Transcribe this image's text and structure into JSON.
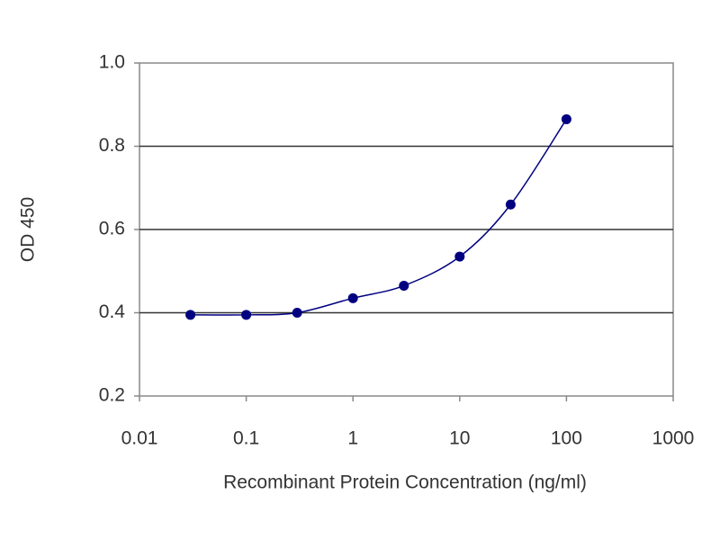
{
  "chart_data": {
    "type": "line",
    "x_label": "Recombinant Protein Concentration (ng/ml)",
    "y_label": "OD 450",
    "x": [
      0.03,
      0.1,
      0.3,
      1,
      3,
      10,
      30,
      100
    ],
    "values": [
      0.395,
      0.395,
      0.4,
      0.435,
      0.465,
      0.535,
      0.66,
      0.865
    ],
    "color": "#000080",
    "x_log": true,
    "xlim": [
      0.01,
      1000
    ],
    "xticks": [
      0.01,
      0.1,
      1,
      10,
      100,
      1000
    ],
    "ylim": [
      0.2,
      1.0
    ],
    "yticks": [
      0.2,
      0.4,
      0.6,
      0.8,
      {
        "value": 1.0,
        "label": "1.0"
      }
    ],
    "grid": true
  }
}
